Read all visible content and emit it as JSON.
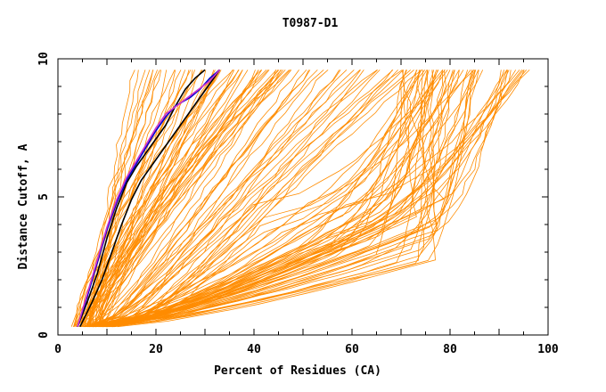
{
  "chart_data": {
    "type": "line",
    "title": "T0987-D1",
    "xlabel": "Percent of Residues (CA)",
    "ylabel": "Distance Cutoff, A",
    "xlim": [
      0,
      100
    ],
    "ylim": [
      0,
      10
    ],
    "x_ticks": [
      0,
      20,
      40,
      60,
      80,
      100
    ],
    "y_ticks": [
      0,
      5,
      10
    ],
    "grid": false,
    "colors": {
      "background_series": "#ff8c00",
      "highlight_dark": "#000000",
      "highlight_blue": "#0000cc",
      "highlight_purple": "#cc33cc"
    },
    "series": [
      {
        "color": "#000000",
        "points": [
          [
            4,
            0.3
          ],
          [
            6,
            1.2
          ],
          [
            8,
            2.2
          ],
          [
            10,
            3.5
          ],
          [
            12,
            4.6
          ],
          [
            14,
            5.5
          ],
          [
            16,
            6.1
          ],
          [
            18,
            6.6
          ],
          [
            20,
            7.1
          ],
          [
            22,
            7.6
          ],
          [
            24,
            8.3
          ],
          [
            26,
            8.9
          ],
          [
            28,
            9.3
          ],
          [
            30,
            9.6
          ]
        ]
      },
      {
        "color": "#000000",
        "points": [
          [
            4.5,
            0.3
          ],
          [
            7,
            1.2
          ],
          [
            9,
            2.0
          ],
          [
            11,
            3.0
          ],
          [
            13,
            4.0
          ],
          [
            15,
            4.9
          ],
          [
            17,
            5.6
          ],
          [
            19,
            6.1
          ],
          [
            21,
            6.6
          ],
          [
            23,
            7.1
          ],
          [
            25,
            7.6
          ],
          [
            27,
            8.1
          ],
          [
            29,
            8.6
          ],
          [
            31,
            9.1
          ],
          [
            33,
            9.6
          ]
        ]
      },
      {
        "color": "#0000cc",
        "points": [
          [
            4,
            0.3
          ],
          [
            6,
            1.4
          ],
          [
            8,
            2.6
          ],
          [
            10,
            3.8
          ],
          [
            12,
            4.8
          ],
          [
            14,
            5.6
          ],
          [
            16,
            6.2
          ],
          [
            18,
            6.8
          ],
          [
            20,
            7.4
          ],
          [
            22,
            7.9
          ],
          [
            24,
            8.3
          ],
          [
            27,
            8.6
          ],
          [
            29,
            8.9
          ],
          [
            31,
            9.3
          ],
          [
            33,
            9.6
          ]
        ]
      },
      {
        "color": "#cc33cc",
        "points": [
          [
            4,
            0.3
          ],
          [
            6,
            1.5
          ],
          [
            8,
            2.7
          ],
          [
            10,
            3.9
          ],
          [
            12,
            4.9
          ],
          [
            14,
            5.7
          ],
          [
            16,
            6.3
          ],
          [
            18,
            6.9
          ],
          [
            20,
            7.5
          ],
          [
            22,
            8.0
          ],
          [
            25,
            8.4
          ],
          [
            28,
            8.8
          ],
          [
            31,
            9.2
          ],
          [
            33,
            9.6
          ]
        ]
      }
    ]
  }
}
